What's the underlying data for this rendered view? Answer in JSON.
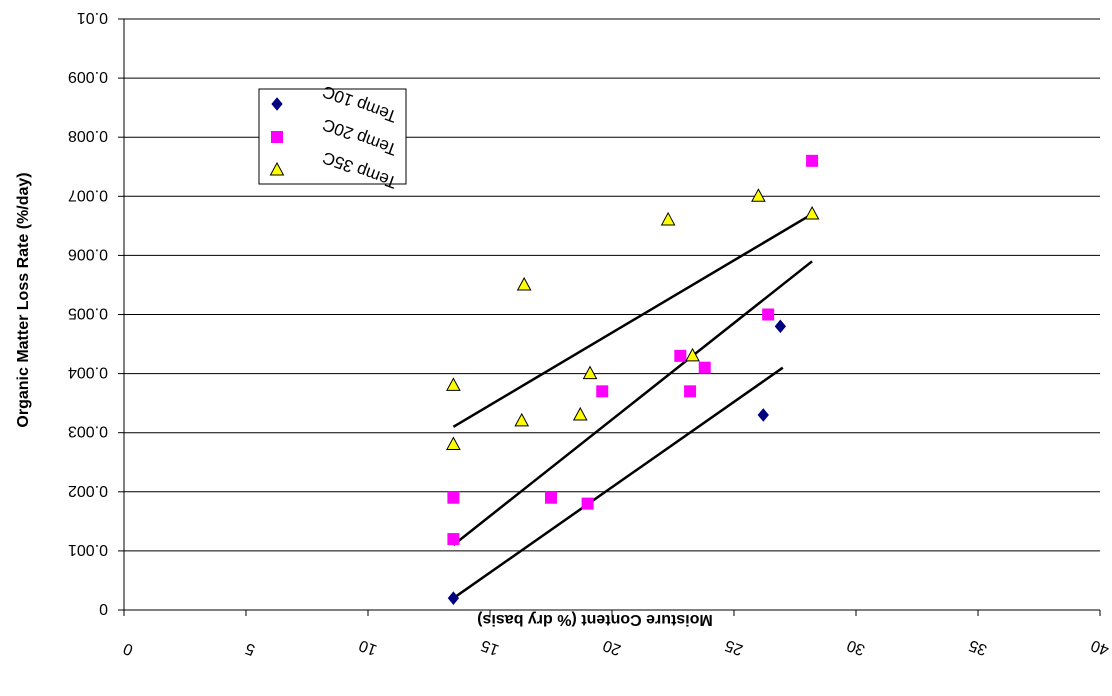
{
  "chart_data": {
    "type": "scatter",
    "title": "",
    "xlabel": "Moisture Content (% dry basis)",
    "ylabel": "Organic Matter Loss Rate (%/day)",
    "xlim": [
      0,
      40
    ],
    "ylim": [
      0,
      0.01
    ],
    "xticks": [
      0,
      5,
      10,
      15,
      20,
      25,
      30,
      35,
      40
    ],
    "xtick_labels": [
      "0",
      "5",
      "10",
      "15",
      "20",
      "25",
      "30",
      "35",
      "40"
    ],
    "yticks": [
      0,
      0.001,
      0.002,
      0.003,
      0.004,
      0.005,
      0.006,
      0.007,
      0.008,
      0.009,
      0.01
    ],
    "ytick_labels": [
      "0",
      "0.001",
      "0.002",
      "0.003",
      "0.004",
      "0.005",
      "0.006",
      "0.007",
      "0.008",
      "0.009",
      "0.01"
    ],
    "grid": "horizontal",
    "legend_position": "top-left",
    "series": [
      {
        "name": "Temp 10C",
        "marker": "diamond",
        "color": "#000080",
        "x": [
          13.5,
          26.2,
          26.9
        ],
        "y": [
          0.0002,
          0.0033,
          0.0048
        ],
        "trend": {
          "x": [
            13.5,
            27.0
          ],
          "y": [
            0.0002,
            0.0041
          ]
        }
      },
      {
        "name": "Temp 20C",
        "marker": "square",
        "color": "#FF00FF",
        "x": [
          13.5,
          13.5,
          17.5,
          19.0,
          19.6,
          22.8,
          23.2,
          23.8,
          26.4,
          28.2
        ],
        "y": [
          0.0012,
          0.0019,
          0.0019,
          0.0018,
          0.0037,
          0.0043,
          0.0037,
          0.0041,
          0.005,
          0.0076
        ],
        "trend": {
          "x": [
            13.5,
            28.2
          ],
          "y": [
            0.0011,
            0.0059
          ]
        }
      },
      {
        "name": "Temp 35C",
        "marker": "triangle",
        "color": "#FFFF00",
        "x": [
          13.5,
          13.5,
          16.3,
          16.4,
          18.7,
          19.1,
          22.3,
          23.3,
          26.0,
          28.2
        ],
        "y": [
          0.0028,
          0.0038,
          0.0032,
          0.0055,
          0.0033,
          0.004,
          0.0066,
          0.0043,
          0.007,
          0.0067
        ],
        "trend": {
          "x": [
            13.5,
            28.2
          ],
          "y": [
            0.0031,
            0.0067
          ]
        }
      }
    ]
  }
}
